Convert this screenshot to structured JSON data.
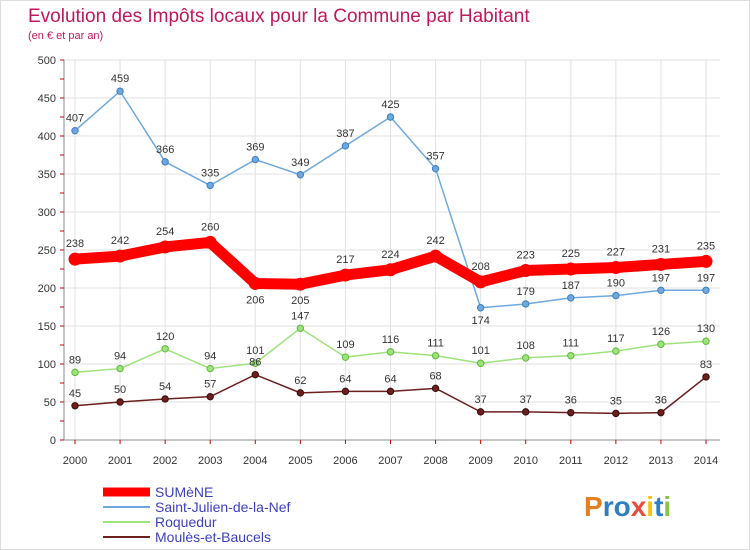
{
  "chart_data": {
    "type": "line",
    "title": "Evolution des Impôts locaux pour la Commune par Habitant",
    "subtitle": "(en € et par an)",
    "x": [
      "2000",
      "2001",
      "2002",
      "2003",
      "2004",
      "2005",
      "2006",
      "2007",
      "2008",
      "2009",
      "2010",
      "2011",
      "2012",
      "2013",
      "2014"
    ],
    "ylim": [
      0,
      500
    ],
    "yticks": [
      0,
      50,
      100,
      150,
      200,
      250,
      300,
      350,
      400,
      450,
      500
    ],
    "grid": true,
    "legend_position": "bottom-left",
    "series": [
      {
        "name": "SUMèNE",
        "color": "#ff0000",
        "values": [
          238,
          242,
          254,
          260,
          206,
          205,
          217,
          224,
          242,
          208,
          223,
          225,
          227,
          231,
          235
        ]
      },
      {
        "name": "Saint-Julien-de-la-Nef",
        "color": "#6fa8dc",
        "values": [
          407,
          459,
          366,
          335,
          369,
          349,
          387,
          425,
          357,
          174,
          179,
          187,
          190,
          197,
          197
        ]
      },
      {
        "name": "Roquedur",
        "color": "#9ee27c",
        "values": [
          89,
          94,
          120,
          94,
          101,
          147,
          109,
          116,
          111,
          101,
          108,
          111,
          117,
          126,
          130
        ]
      },
      {
        "name": "Moulès-et-Baucels",
        "color": "#6b1f1f",
        "values": [
          45,
          50,
          54,
          57,
          86,
          62,
          64,
          64,
          68,
          37,
          37,
          36,
          35,
          36,
          83
        ]
      }
    ]
  },
  "logo": {
    "text": "Proxiti"
  }
}
